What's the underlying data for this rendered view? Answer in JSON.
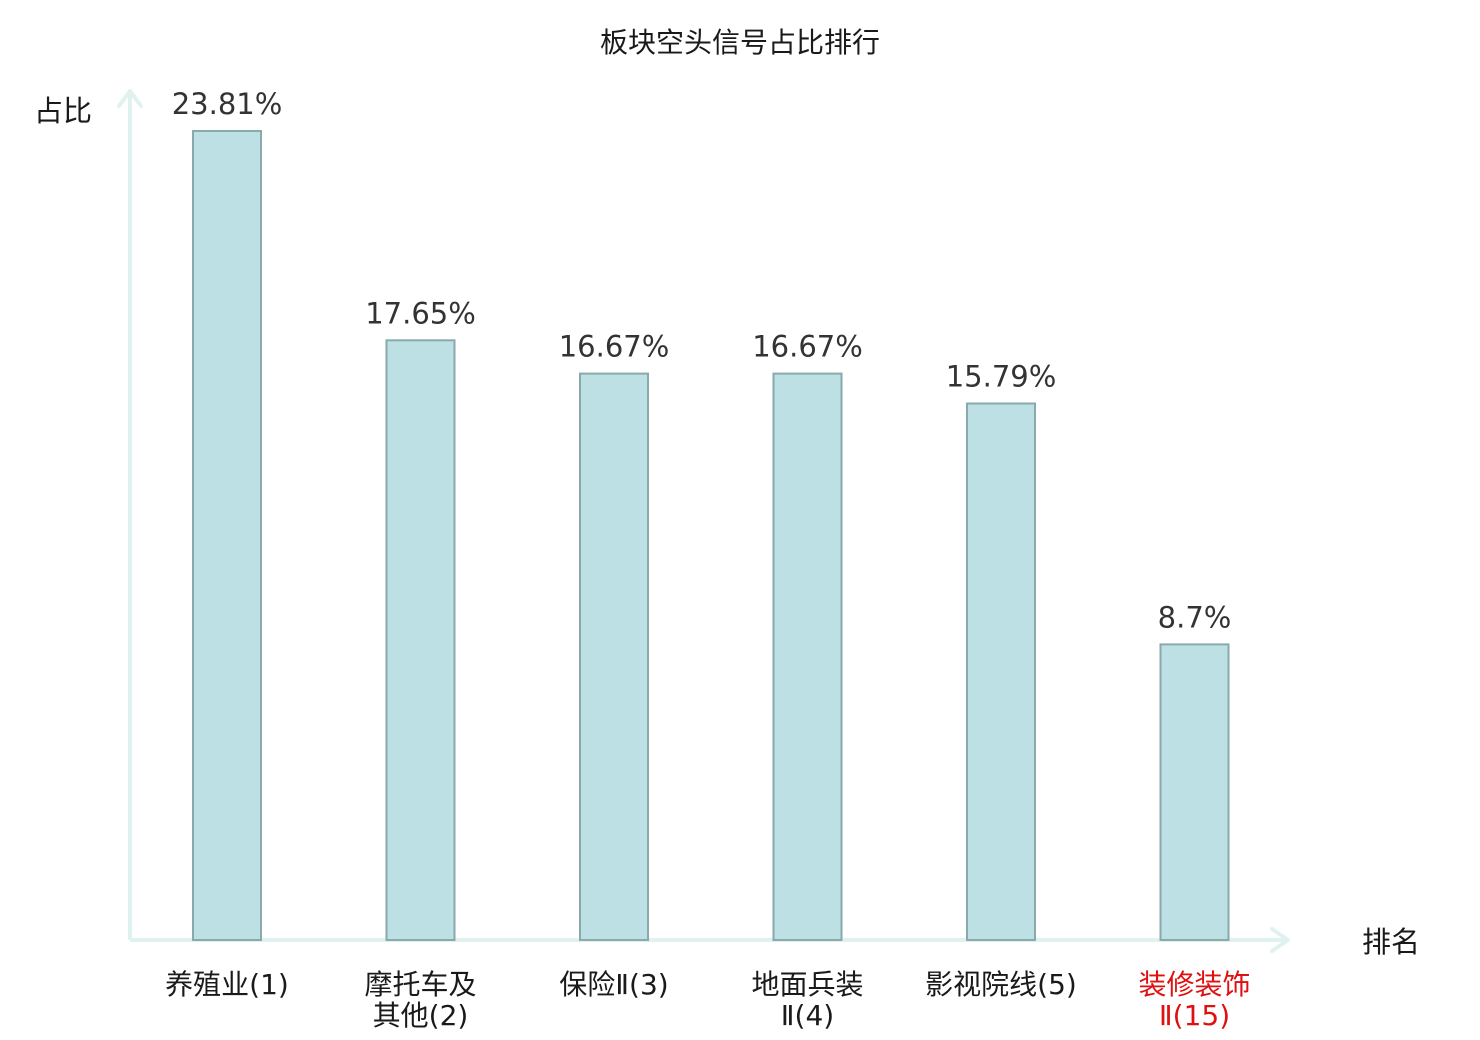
{
  "chart_data": {
    "type": "bar",
    "title": "板块空头信号占比排行",
    "ylabel": "占比",
    "xlabel": "排名",
    "categories": [
      [
        "养殖业(1)"
      ],
      [
        "摩托车及",
        "其他(2)"
      ],
      [
        "保险Ⅱ(3)"
      ],
      [
        "地面兵装",
        "Ⅱ(4)"
      ],
      [
        "影视院线(5)"
      ],
      [
        "装修装饰",
        "Ⅱ(15)"
      ]
    ],
    "values": [
      23.81,
      17.65,
      16.67,
      16.67,
      15.79,
      8.7
    ],
    "value_labels": [
      "23.81%",
      "17.65%",
      "16.67%",
      "16.67%",
      "15.79%",
      "8.7%"
    ],
    "ylim": [
      0,
      25
    ],
    "highlight_index": 5,
    "grid": false,
    "colors": {
      "bar_fill": "#bce0e3",
      "bar_stroke": "#8aa9aa",
      "axis": "#e0f2ef",
      "label_normal": "#1a1a1a",
      "label_highlight": "#e01010"
    }
  }
}
